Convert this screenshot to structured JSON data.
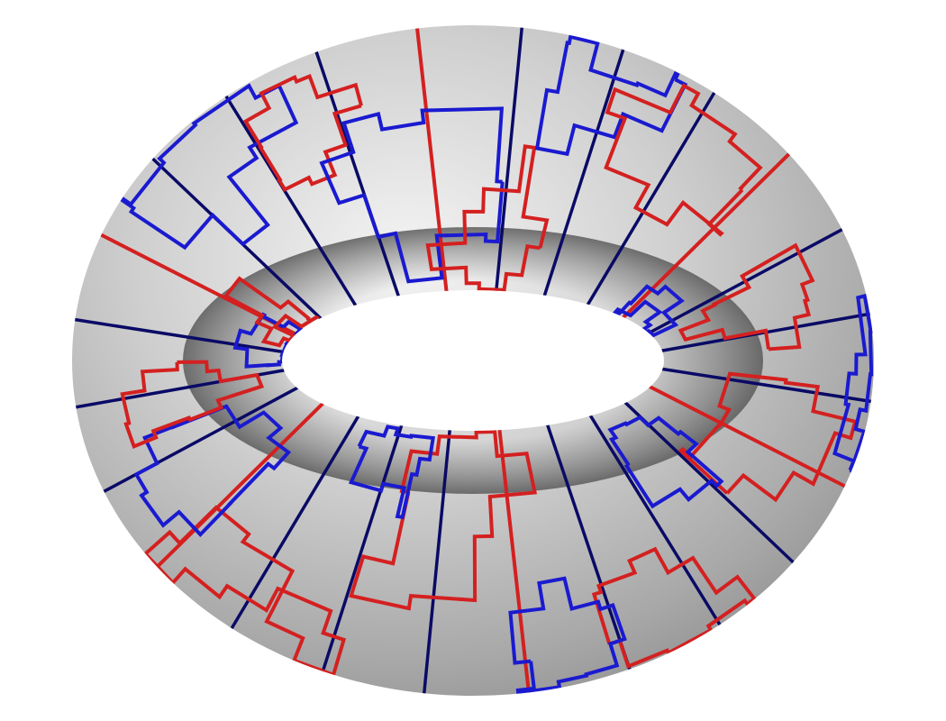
{
  "figure": {
    "surface": "torus",
    "colors": {
      "background": "#ffffff",
      "surface_light": "#f2f2f2",
      "surface_mid": "#c4c4c4",
      "surface_dark": "#8a8a8a",
      "contour_red": "#d42020",
      "contour_blue": "#1a1ad0",
      "meridian_navy": "#0a0a66"
    },
    "meridians": 24,
    "red_meridians": [
      1,
      5,
      9,
      13,
      17,
      21
    ],
    "loops": [
      {
        "color": "red",
        "u": 20,
        "v": 100,
        "du": 14,
        "dv": 40
      },
      {
        "color": "blue",
        "u": 40,
        "v": 60,
        "du": 10,
        "dv": 30
      },
      {
        "color": "red",
        "u": 58,
        "v": 140,
        "du": 12,
        "dv": 50
      },
      {
        "color": "blue",
        "u": 75,
        "v": 220,
        "du": 8,
        "dv": 35
      },
      {
        "color": "red",
        "u": 95,
        "v": 300,
        "du": 16,
        "dv": 45
      },
      {
        "color": "blue",
        "u": 110,
        "v": 40,
        "du": 9,
        "dv": 28
      },
      {
        "color": "red",
        "u": 128,
        "v": 180,
        "du": 14,
        "dv": 60
      },
      {
        "color": "blue",
        "u": 150,
        "v": 260,
        "du": 12,
        "dv": 40
      },
      {
        "color": "red",
        "u": 170,
        "v": 90,
        "du": 10,
        "dv": 36
      },
      {
        "color": "blue",
        "u": 190,
        "v": 330,
        "du": 15,
        "dv": 30
      },
      {
        "color": "red",
        "u": 205,
        "v": 20,
        "du": 11,
        "dv": 45
      },
      {
        "color": "blue",
        "u": 222,
        "v": 150,
        "du": 13,
        "dv": 55
      },
      {
        "color": "red",
        "u": 240,
        "v": 240,
        "du": 9,
        "dv": 30
      },
      {
        "color": "blue",
        "u": 258,
        "v": 80,
        "du": 16,
        "dv": 42
      },
      {
        "color": "red",
        "u": 275,
        "v": 310,
        "du": 12,
        "dv": 38
      },
      {
        "color": "blue",
        "u": 292,
        "v": 200,
        "du": 10,
        "dv": 50
      },
      {
        "color": "red",
        "u": 310,
        "v": 120,
        "du": 14,
        "dv": 34
      },
      {
        "color": "blue",
        "u": 328,
        "v": 10,
        "du": 11,
        "dv": 40
      },
      {
        "color": "red",
        "u": 345,
        "v": 270,
        "du": 9,
        "dv": 44
      },
      {
        "color": "blue",
        "u": 5,
        "v": 190,
        "du": 12,
        "dv": 36
      }
    ]
  }
}
